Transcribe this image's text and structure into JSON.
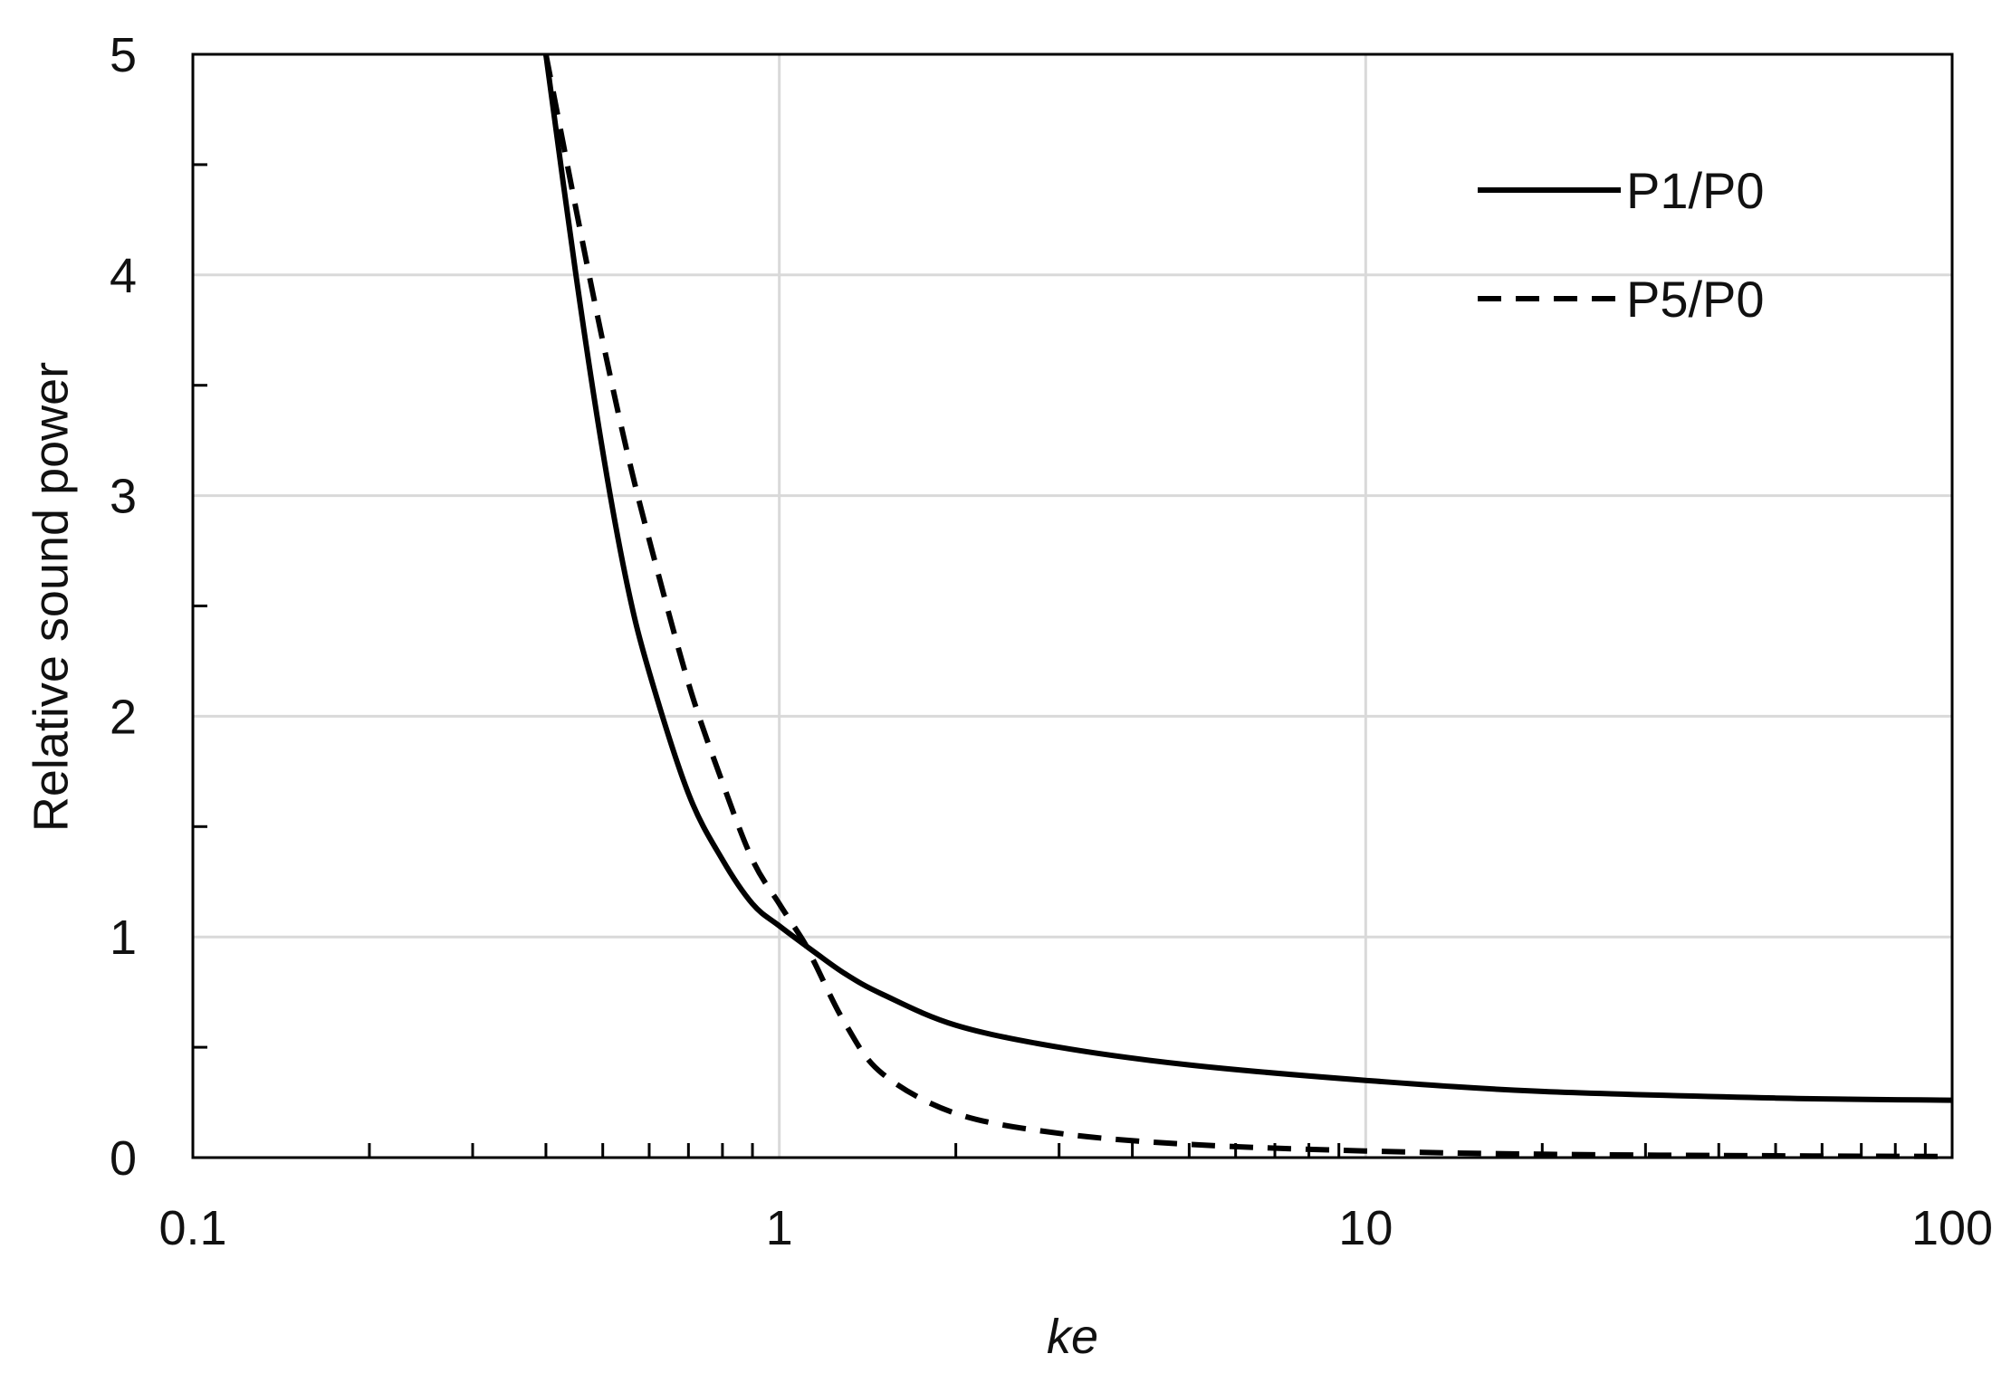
{
  "chart_data": {
    "type": "line",
    "title": "",
    "xlabel": "ke",
    "ylabel": "Relative sound power",
    "xscale": "log",
    "xlim": [
      0.1,
      100
    ],
    "ylim": [
      0,
      5
    ],
    "x_ticks": [
      {
        "value": 0.1,
        "label": "0.1"
      },
      {
        "value": 1,
        "label": "1"
      },
      {
        "value": 10,
        "label": "10"
      },
      {
        "value": 100,
        "label": "100"
      }
    ],
    "y_ticks": [
      {
        "value": 0,
        "label": "0"
      },
      {
        "value": 1,
        "label": "1"
      },
      {
        "value": 2,
        "label": "2"
      },
      {
        "value": 3,
        "label": "3"
      },
      {
        "value": 4,
        "label": "4"
      },
      {
        "value": 5,
        "label": "5"
      }
    ],
    "grid": true,
    "legend_position": "top-right",
    "series": [
      {
        "name": "P1/P0",
        "style": "solid",
        "color": "#000000",
        "x": [
          0.4,
          0.45,
          0.5,
          0.55,
          0.6,
          0.7,
          0.8,
          0.9,
          1.0,
          1.15,
          1.3,
          1.5,
          2.0,
          3.0,
          5.0,
          10,
          20,
          50,
          100
        ],
        "y": [
          5.0,
          4.0,
          3.2,
          2.6,
          2.2,
          1.65,
          1.35,
          1.15,
          1.05,
          0.93,
          0.83,
          0.74,
          0.6,
          0.5,
          0.42,
          0.35,
          0.3,
          0.27,
          0.26
        ]
      },
      {
        "name": "P5/P0",
        "style": "dashed",
        "color": "#000000",
        "x": [
          0.4,
          0.45,
          0.5,
          0.55,
          0.6,
          0.7,
          0.8,
          0.9,
          1.0,
          1.1,
          1.15,
          1.3,
          1.5,
          2.0,
          3.0,
          5.0,
          10,
          20,
          50,
          100
        ],
        "y": [
          5.0,
          4.3,
          3.7,
          3.2,
          2.8,
          2.15,
          1.7,
          1.35,
          1.15,
          0.98,
          0.88,
          0.6,
          0.38,
          0.2,
          0.11,
          0.06,
          0.03,
          0.015,
          0.008,
          0.005
        ]
      }
    ]
  }
}
